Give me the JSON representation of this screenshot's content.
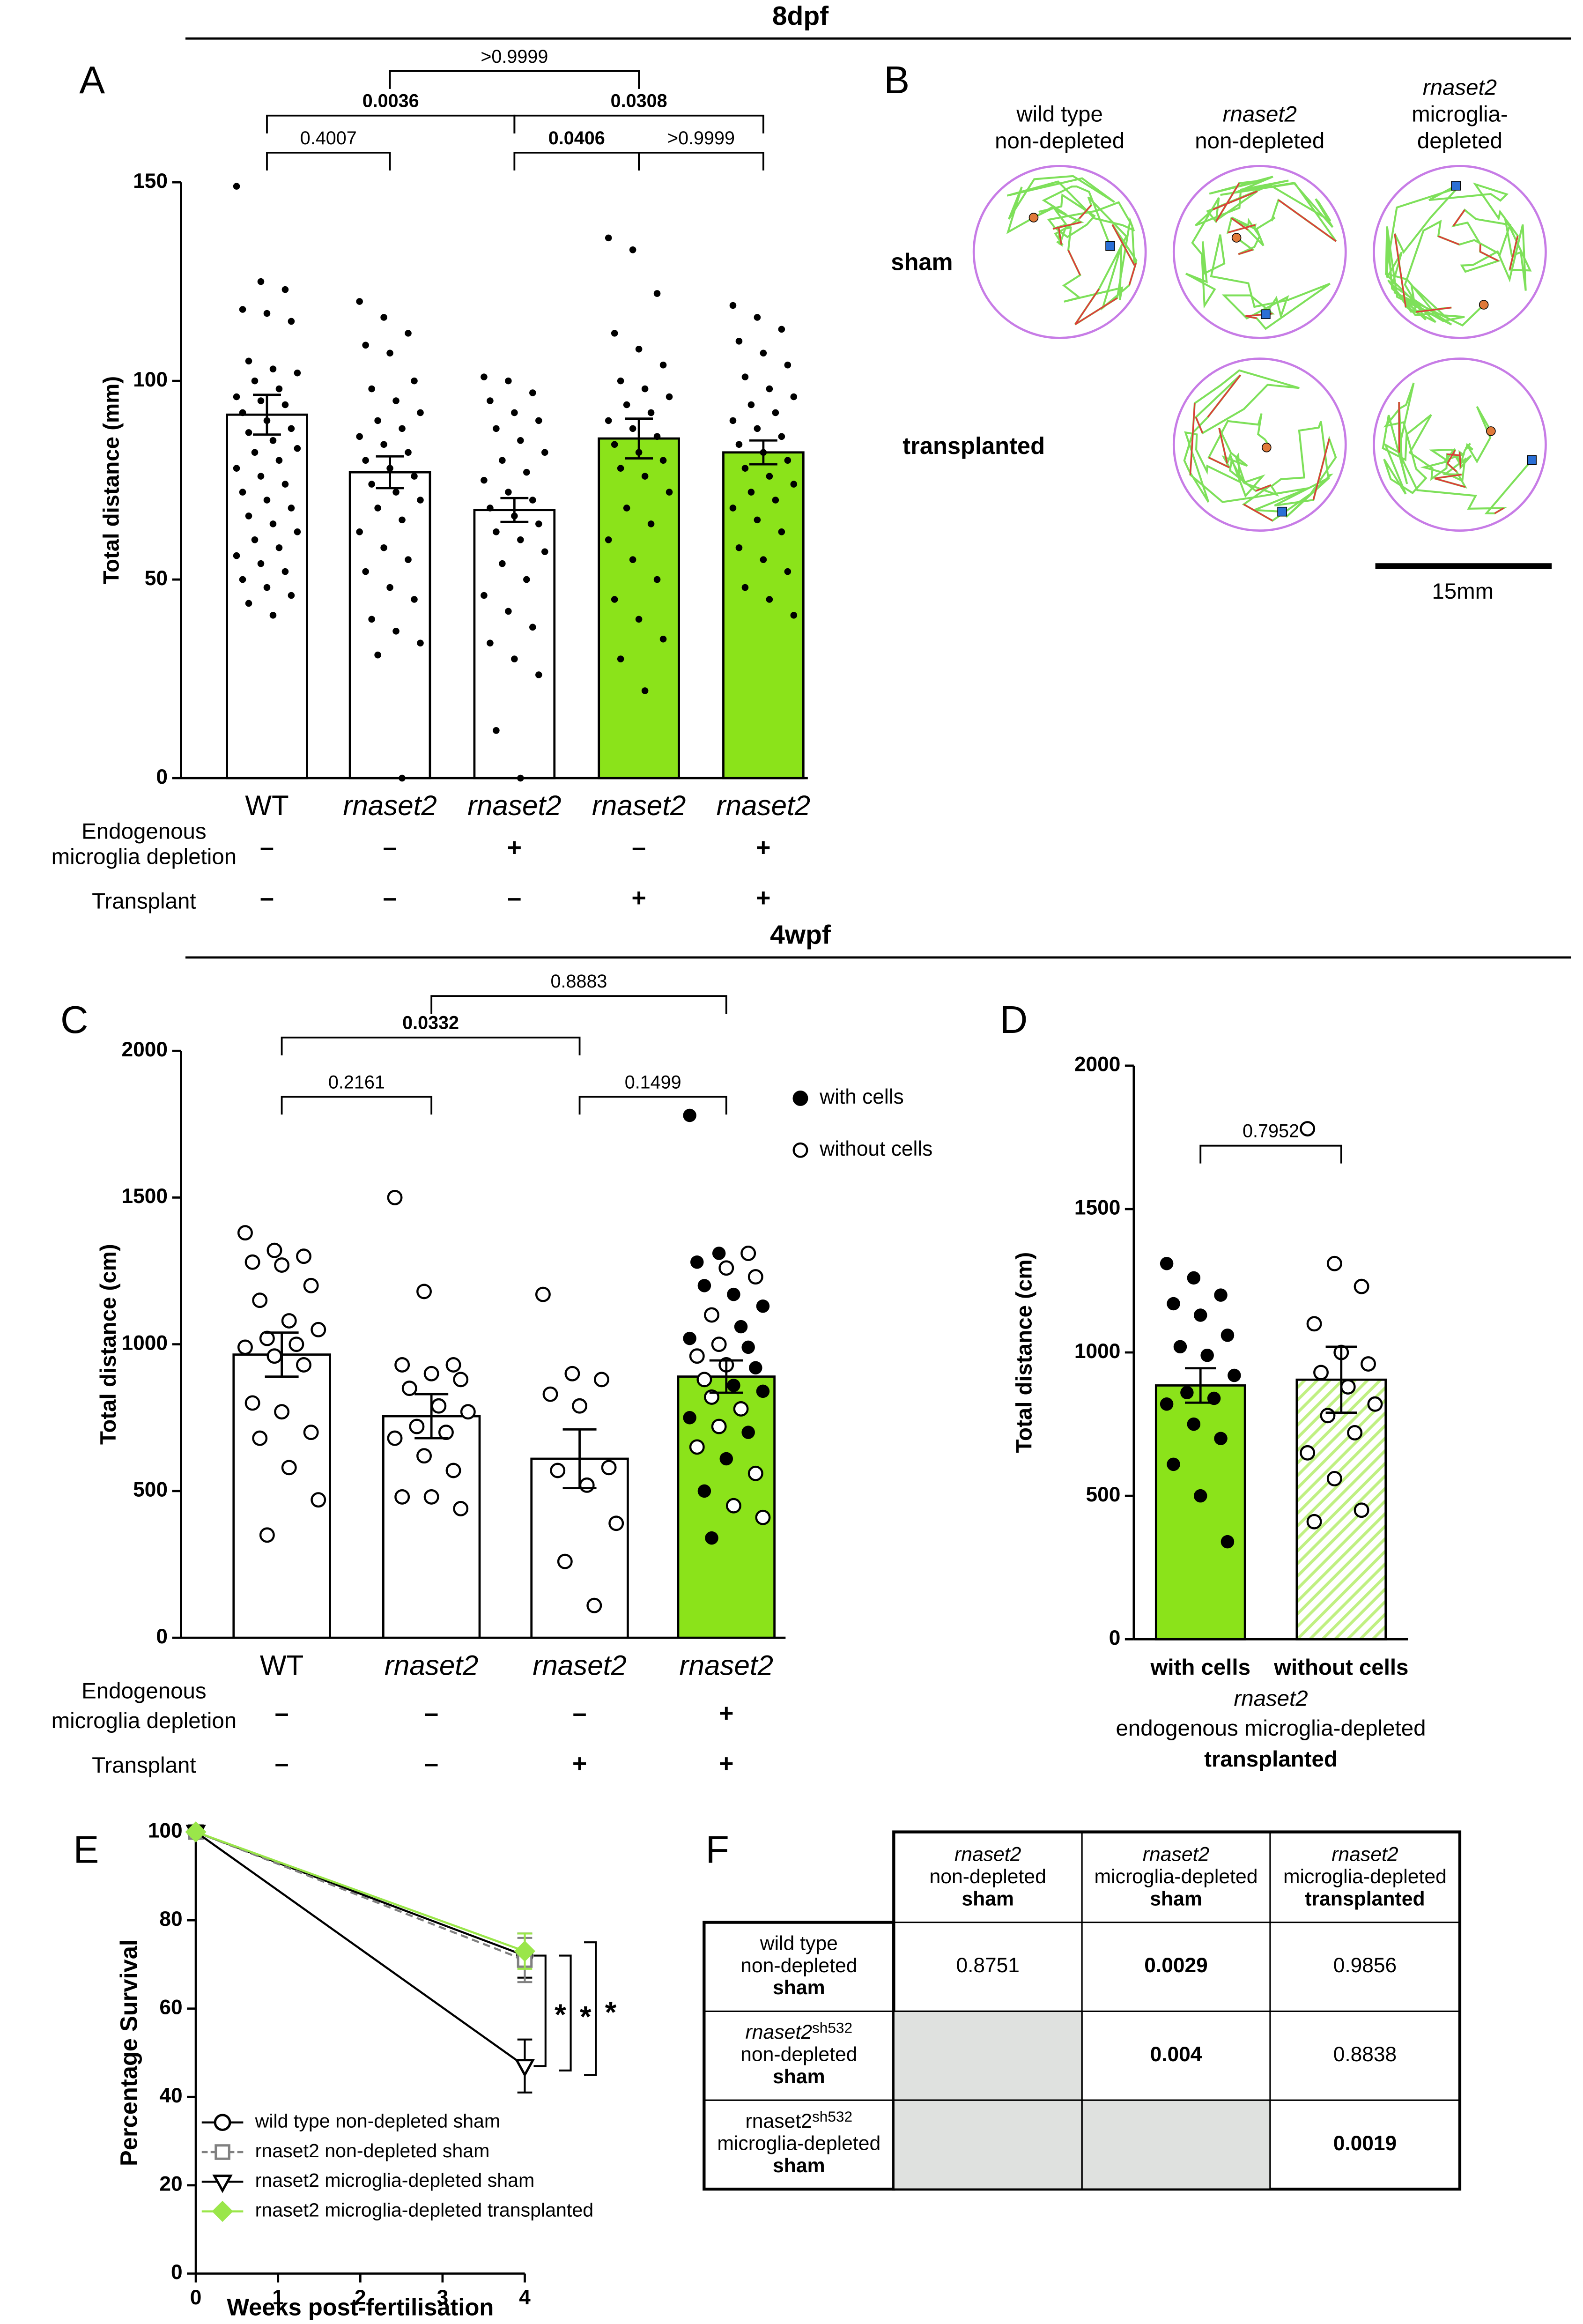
{
  "headers": {
    "top": "8dpf",
    "middle": "4wpf"
  },
  "panels": [
    "A",
    "B",
    "C",
    "D",
    "E",
    "F"
  ],
  "panel_b": {
    "columns": [
      [
        "wild type",
        "non-depleted"
      ],
      [
        "rnaset2",
        "non-depleted"
      ],
      [
        "rnaset2",
        "microglia-",
        "depleted"
      ]
    ],
    "column_italic_first": [
      false,
      true,
      true
    ],
    "rows": [
      "sham",
      "transplanted"
    ],
    "scale_bar": "15mm"
  },
  "table_f": {
    "header": [
      [
        "rnaset2",
        "non-depleted",
        "sham"
      ],
      [
        "rnaset2",
        "microglia-depleted",
        "sham"
      ],
      [
        "rnaset2",
        "microglia-depleted",
        "transplanted"
      ]
    ],
    "rows": [
      {
        "label": [
          "wild type",
          "non-depleted",
          "sham"
        ],
        "cells": [
          "0.8751",
          "0.0029",
          "0.9856"
        ],
        "bold": [
          false,
          true,
          false
        ]
      },
      {
        "label": [
          "rnaset2",
          "non-depleted",
          "sham"
        ],
        "allele": "sh532",
        "italic": true,
        "cells": [
          null,
          "0.004",
          "0.8838"
        ],
        "bold": [
          false,
          true,
          false
        ]
      },
      {
        "label": [
          "rnaset2",
          "microglia-depleted",
          "sham"
        ],
        "allele": "sh532",
        "italic": false,
        "cells": [
          null,
          null,
          "0.0019"
        ],
        "bold": [
          false,
          false,
          true
        ]
      }
    ]
  },
  "chart_data": [
    {
      "type": "bar",
      "ylabel": "Total distance (mm)",
      "categories": [
        "WT",
        "rnaset2",
        "rnaset2",
        "rnaset2",
        "rnaset2"
      ],
      "category_italic": [
        false,
        true,
        true,
        true,
        true
      ],
      "values": [
        91.5,
        77,
        67.5,
        85.5,
        82
      ],
      "errors": [
        5,
        4,
        3,
        5,
        3
      ],
      "colors": [
        "#ffffff",
        "#ffffff",
        "#ffffff",
        "#8be31a",
        "#8be31a"
      ],
      "ylim": [
        0,
        150
      ],
      "yticks": [
        0,
        50,
        100,
        150
      ],
      "point_style": [
        "filled",
        "filled",
        "filled",
        "filled",
        "filled"
      ],
      "points": [
        [
          149,
          125,
          123,
          118,
          117,
          115,
          105,
          103,
          102,
          100,
          98,
          96,
          95,
          94,
          92,
          90,
          88,
          87,
          85,
          83,
          82,
          80,
          78,
          76,
          74,
          72,
          70,
          68,
          66,
          64,
          62,
          60,
          58,
          56,
          54,
          52,
          50,
          48,
          46,
          44,
          41
        ],
        [
          120,
          116,
          112,
          109,
          107,
          100,
          98,
          95,
          92,
          90,
          88,
          86,
          84,
          82,
          80,
          78,
          76,
          74,
          72,
          70,
          68,
          65,
          62,
          58,
          55,
          52,
          48,
          45,
          40,
          37,
          34,
          31,
          0
        ],
        [
          101,
          100,
          97,
          95,
          92,
          90,
          88,
          85,
          82,
          80,
          77,
          75,
          72,
          70,
          68,
          66,
          64,
          62,
          60,
          57,
          54,
          50,
          46,
          42,
          38,
          34,
          30,
          26,
          12,
          0
        ],
        [
          136,
          133,
          122,
          112,
          108,
          104,
          100,
          98,
          96,
          94,
          92,
          90,
          88,
          86,
          84,
          82,
          80,
          78,
          76,
          72,
          68,
          64,
          60,
          55,
          50,
          45,
          40,
          35,
          30,
          22
        ],
        [
          119,
          116,
          113,
          110,
          107,
          104,
          101,
          98,
          96,
          94,
          92,
          90,
          88,
          86,
          84,
          82,
          80,
          78,
          76,
          74,
          72,
          70,
          68,
          65,
          62,
          58,
          55,
          52,
          48,
          45,
          41
        ]
      ],
      "comparisons": [
        {
          "groups": [
            0,
            1
          ],
          "label": "0.4007",
          "bold": false
        },
        {
          "groups": [
            0,
            2
          ],
          "label": "0.0036",
          "bold": true
        },
        {
          "groups": [
            1,
            3
          ],
          "label": ">0.9999",
          "bold": false
        },
        {
          "groups": [
            2,
            3
          ],
          "label": "0.0406",
          "bold": true
        },
        {
          "groups": [
            2,
            4
          ],
          "label": "0.0308",
          "bold": true
        },
        {
          "groups": [
            3,
            4
          ],
          "label": ">0.9999",
          "bold": false
        }
      ],
      "conditions": [
        {
          "label": [
            "Endogenous",
            "microglia depletion"
          ],
          "marks": [
            "–",
            "–",
            "+",
            "–",
            "+"
          ]
        },
        {
          "label": [
            "Transplant"
          ],
          "marks": [
            "–",
            "–",
            "–",
            "+",
            "+"
          ]
        }
      ]
    },
    {
      "type": "bar",
      "ylabel": "Total distance (cm)",
      "categories": [
        "WT",
        "rnaset2",
        "rnaset2",
        "rnaset2"
      ],
      "category_italic": [
        false,
        true,
        true,
        true
      ],
      "values": [
        965,
        755,
        610,
        890
      ],
      "errors": [
        75,
        75,
        100,
        55
      ],
      "colors": [
        "#ffffff",
        "#ffffff",
        "#ffffff",
        "#8be31a"
      ],
      "ylim": [
        0,
        2000
      ],
      "yticks": [
        0,
        500,
        1000,
        1500,
        2000
      ],
      "points": [
        [
          1380,
          1320,
          1300,
          1280,
          1270,
          1200,
          1150,
          1080,
          1050,
          1020,
          1000,
          990,
          960,
          930,
          800,
          770,
          700,
          680,
          580,
          470,
          350
        ],
        [
          1500,
          1180,
          930,
          930,
          900,
          880,
          850,
          790,
          770,
          720,
          700,
          680,
          620,
          570,
          480,
          480,
          440
        ],
        [
          1170,
          900,
          880,
          830,
          790,
          580,
          570,
          520,
          390,
          260,
          110
        ],
        [
          1780,
          1310,
          1310,
          1280,
          1260,
          1230,
          1200,
          1170,
          1130,
          1100,
          1060,
          1020,
          1000,
          990,
          960,
          930,
          920,
          880,
          860,
          840,
          820,
          780,
          750,
          720,
          700,
          650,
          610,
          560,
          500,
          450,
          410,
          340
        ]
      ],
      "filled": [
        [
          false,
          false,
          false,
          false,
          false,
          false,
          false,
          false,
          false,
          false,
          false,
          false,
          false,
          false,
          false,
          false,
          false,
          false,
          false,
          false,
          false
        ],
        [
          false,
          false,
          false,
          false,
          false,
          false,
          false,
          false,
          false,
          false,
          false,
          false,
          false,
          false,
          false,
          false,
          false
        ],
        [
          false,
          false,
          false,
          false,
          false,
          false,
          false,
          false,
          false,
          false,
          false
        ],
        [
          true,
          true,
          false,
          true,
          false,
          false,
          true,
          true,
          true,
          false,
          true,
          true,
          false,
          true,
          false,
          false,
          true,
          false,
          true,
          true,
          false,
          false,
          true,
          false,
          true,
          false,
          true,
          false,
          true,
          false,
          false,
          true
        ]
      ],
      "comparisons": [
        {
          "groups": [
            0,
            1
          ],
          "label": "0.2161",
          "bold": false
        },
        {
          "groups": [
            0,
            2
          ],
          "label": "0.0332",
          "bold": true
        },
        {
          "groups": [
            1,
            3
          ],
          "label": "0.8883",
          "bold": false
        },
        {
          "groups": [
            2,
            3
          ],
          "label": "0.1499",
          "bold": false
        }
      ],
      "legend": [
        {
          "label": "with cells",
          "style": "filled"
        },
        {
          "label": "without cells",
          "style": "open"
        }
      ],
      "conditions": [
        {
          "label": [
            "Endogenous",
            "microglia depletion"
          ],
          "marks": [
            "–",
            "–",
            "–",
            "+"
          ]
        },
        {
          "label": [
            "Transplant"
          ],
          "marks": [
            "–",
            "–",
            "+",
            "+"
          ]
        }
      ]
    },
    {
      "type": "bar",
      "ylabel": "Total distance (cm)",
      "categories": [
        "with cells",
        "without cells"
      ],
      "category_bold": true,
      "values": [
        885,
        905
      ],
      "errors": [
        60,
        115
      ],
      "colors": [
        "#8be31a",
        "#8be31a"
      ],
      "hatch": [
        false,
        true
      ],
      "ylim": [
        0,
        2000
      ],
      "yticks": [
        0,
        500,
        1000,
        1500,
        2000
      ],
      "point_style": [
        "filled",
        "open"
      ],
      "points": [
        [
          1310,
          1260,
          1200,
          1170,
          1130,
          1060,
          1020,
          990,
          920,
          860,
          840,
          820,
          750,
          700,
          610,
          500,
          340
        ],
        [
          1780,
          1310,
          1230,
          1100,
          1000,
          960,
          930,
          880,
          820,
          780,
          720,
          650,
          560,
          450,
          410
        ]
      ],
      "comparisons": [
        {
          "groups": [
            0,
            1
          ],
          "label": "0.7952",
          "bold": false
        }
      ],
      "group_label": [
        "rnaset2",
        "endogenous microglia-depleted",
        "transplanted"
      ],
      "group_label_styles": [
        "italic",
        "normal",
        "bold"
      ]
    },
    {
      "type": "line",
      "xlabel": "Weeks post-fertilisation",
      "ylabel": "Percentage Survival",
      "x": [
        0,
        4
      ],
      "xlim": [
        0,
        4
      ],
      "xticks": [
        0,
        1,
        2,
        3,
        4
      ],
      "ylim": [
        0,
        100
      ],
      "yticks": [
        0,
        20,
        40,
        60,
        80,
        100
      ],
      "series": [
        {
          "name": "wild type non-depleted sham",
          "color": "#000000",
          "marker": "circle",
          "dashed": false,
          "values": [
            100,
            72
          ],
          "errors": [
            0,
            5
          ]
        },
        {
          "name": "rnaset2 non-depleted sham",
          "color": "#808080",
          "marker": "square",
          "dashed": true,
          "values": [
            100,
            71
          ],
          "errors": [
            0,
            5
          ]
        },
        {
          "name": "rnaset2 microglia-depleted sham",
          "color": "#000000",
          "marker": "triangle",
          "dashed": false,
          "values": [
            100,
            47
          ],
          "errors": [
            0,
            6
          ]
        },
        {
          "name": "rnaset2 microglia-depleted transplanted",
          "color": "#9ae64a",
          "marker": "diamond",
          "dashed": false,
          "values": [
            100,
            73
          ],
          "errors": [
            0,
            4
          ]
        }
      ],
      "significance": [
        {
          "pair": [
            0,
            2
          ],
          "label": "*"
        },
        {
          "pair": [
            1,
            2
          ],
          "label": "*"
        },
        {
          "pair": [
            3,
            2
          ],
          "label": "*"
        }
      ]
    }
  ]
}
